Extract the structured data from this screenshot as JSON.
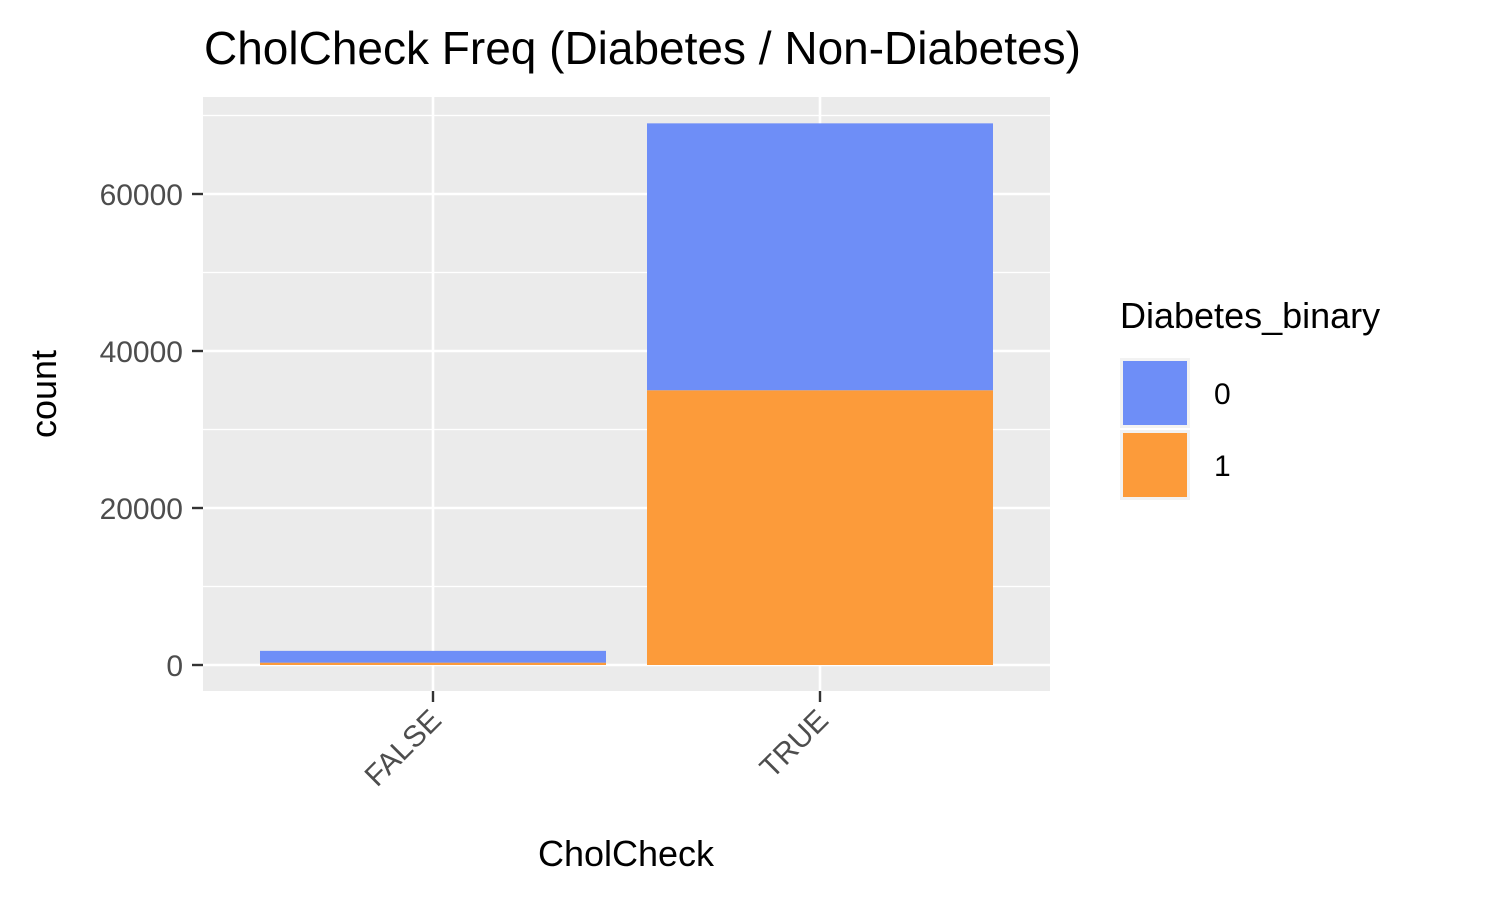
{
  "chart_data": {
    "type": "bar",
    "stacked": true,
    "title": "CholCheck Freq (Diabetes / Non-Diabetes)",
    "xlabel": "CholCheck",
    "ylabel": "count",
    "categories": [
      "FALSE",
      "TRUE"
    ],
    "series": [
      {
        "name": "0",
        "values": [
          1500,
          34000
        ]
      },
      {
        "name": "1",
        "values": [
          300,
          35000
        ]
      }
    ],
    "ylim": [
      -3500,
      69000
    ],
    "yticks": [
      0,
      20000,
      40000,
      60000
    ],
    "ytick_labels": [
      "0",
      "20000",
      "40000",
      "60000"
    ],
    "grid": true,
    "legend": {
      "title": "Diabetes_binary",
      "position": "right",
      "entries": [
        "0",
        "1"
      ]
    },
    "colors": {
      "0": "#6E8EF7",
      "1": "#FC9B3A",
      "panel_background": "#EBEBEB",
      "grid": "#FFFFFF"
    }
  }
}
